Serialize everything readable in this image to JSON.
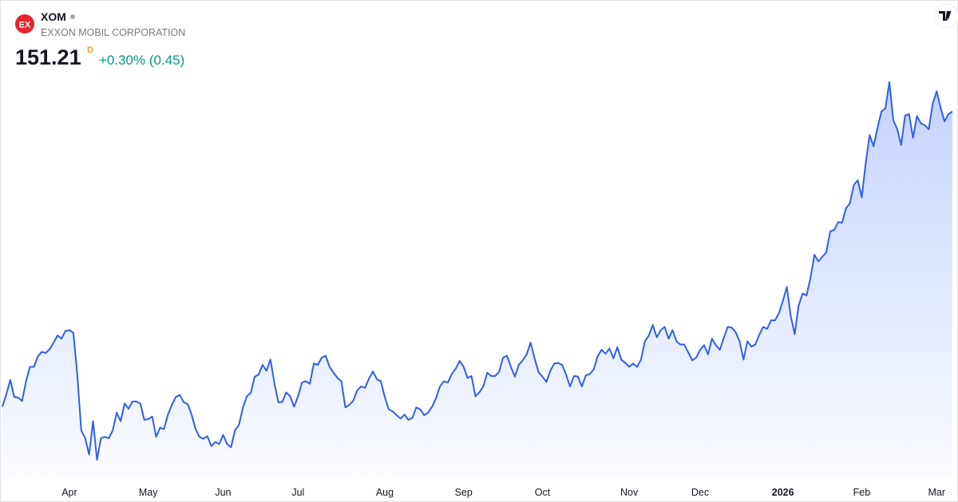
{
  "header": {
    "logo_text": "EX",
    "symbol": "XOM",
    "company": "EXXON MOBIL CORPORATION",
    "price": "151.21",
    "interval": "D",
    "change": "+0.30% (0.45)"
  },
  "chart_data": {
    "type": "line",
    "series": [
      {
        "name": "XOM",
        "color": "#2f5fe8",
        "values": [
          106.1,
          108.0,
          110.2,
          107.6,
          107.5,
          107.0,
          110.0,
          112.2,
          112.2,
          113.8,
          114.5,
          114.3,
          114.9,
          115.9,
          117.0,
          116.5,
          117.7,
          117.8,
          117.4,
          111.0,
          102.5,
          101.3,
          98.8,
          103.9,
          98.0,
          101.3,
          101.5,
          101.3,
          102.5,
          105.2,
          103.9,
          106.6,
          105.8,
          106.9,
          106.9,
          106.6,
          104.1,
          104.2,
          104.6,
          101.5,
          102.9,
          102.7,
          104.9,
          106.4,
          107.6,
          107.9,
          106.8,
          106.5,
          104.9,
          102.7,
          101.5,
          101.2,
          101.6,
          100.1,
          100.7,
          100.4,
          101.8,
          100.4,
          99.9,
          102.5,
          103.3,
          105.9,
          107.7,
          108.2,
          110.7,
          111.0,
          112.5,
          111.6,
          113.3,
          109.7,
          106.8,
          106.8,
          108.3,
          107.7,
          106.1,
          107.7,
          109.8,
          110.0,
          109.6,
          112.7,
          112.5,
          113.6,
          113.9,
          112.2,
          111.3,
          110.5,
          110.0,
          106.0,
          106.4,
          107.0,
          108.6,
          109.2,
          109.0,
          110.4,
          111.5,
          110.3,
          110.0,
          107.6,
          105.7,
          105.4,
          104.8,
          104.3,
          104.9,
          104.1,
          104.4,
          106.0,
          105.7,
          104.8,
          105.2,
          106.1,
          107.4,
          109.2,
          110.0,
          109.8,
          111.1,
          111.9,
          113.1,
          112.2,
          110.5,
          110.8,
          107.7,
          108.3,
          109.2,
          111.3,
          110.8,
          110.8,
          111.4,
          113.6,
          113.9,
          112.2,
          110.7,
          112.5,
          113.2,
          114.1,
          115.9,
          113.5,
          111.4,
          110.7,
          109.9,
          111.6,
          112.7,
          112.8,
          112.5,
          111.0,
          109.2,
          110.8,
          110.7,
          109.2,
          110.9,
          111.1,
          111.8,
          113.8,
          114.8,
          114.2,
          115.0,
          113.5,
          115.2,
          113.3,
          112.8,
          112.2,
          112.7,
          112.2,
          113.3,
          116.1,
          117.0,
          118.6,
          116.7,
          117.8,
          118.3,
          116.5,
          117.8,
          116.1,
          115.6,
          115.6,
          114.4,
          113.2,
          113.6,
          114.8,
          115.5,
          114.1,
          116.5,
          115.5,
          114.8,
          116.6,
          118.3,
          118.2,
          117.5,
          116.1,
          113.3,
          116.1,
          115.3,
          115.6,
          117.1,
          118.3,
          118.0,
          119.3,
          119.3,
          120.4,
          122.3,
          124.4,
          119.9,
          117.2,
          121.6,
          123.4,
          123.1,
          125.8,
          129.3,
          128.3,
          129.0,
          129.7,
          132.9,
          133.1,
          134.3,
          134.2,
          136.4,
          137.2,
          140.0,
          140.7,
          138.1,
          143.3,
          147.6,
          145.9,
          148.7,
          151.2,
          151.7,
          155.7,
          149.9,
          148.5,
          146.1,
          150.6,
          150.8,
          147.2,
          150.5,
          149.4,
          149.1,
          148.5,
          152.4,
          154.3,
          151.8,
          149.7,
          150.8,
          151.21
        ]
      }
    ],
    "xticks": [
      {
        "value": 17,
        "label": "Apr"
      },
      {
        "value": 37,
        "label": "May"
      },
      {
        "value": 56,
        "label": "Jun"
      },
      {
        "value": 75,
        "label": "Jul"
      },
      {
        "value": 97,
        "label": "Aug"
      },
      {
        "value": 117,
        "label": "Sep"
      },
      {
        "value": 137,
        "label": "Oct"
      },
      {
        "value": 159,
        "label": "Nov"
      },
      {
        "value": 177,
        "label": "Dec"
      },
      {
        "value": 198,
        "label": "2026"
      },
      {
        "value": 218,
        "label": "Feb"
      },
      {
        "value": 237,
        "label": "Mar"
      }
    ]
  }
}
